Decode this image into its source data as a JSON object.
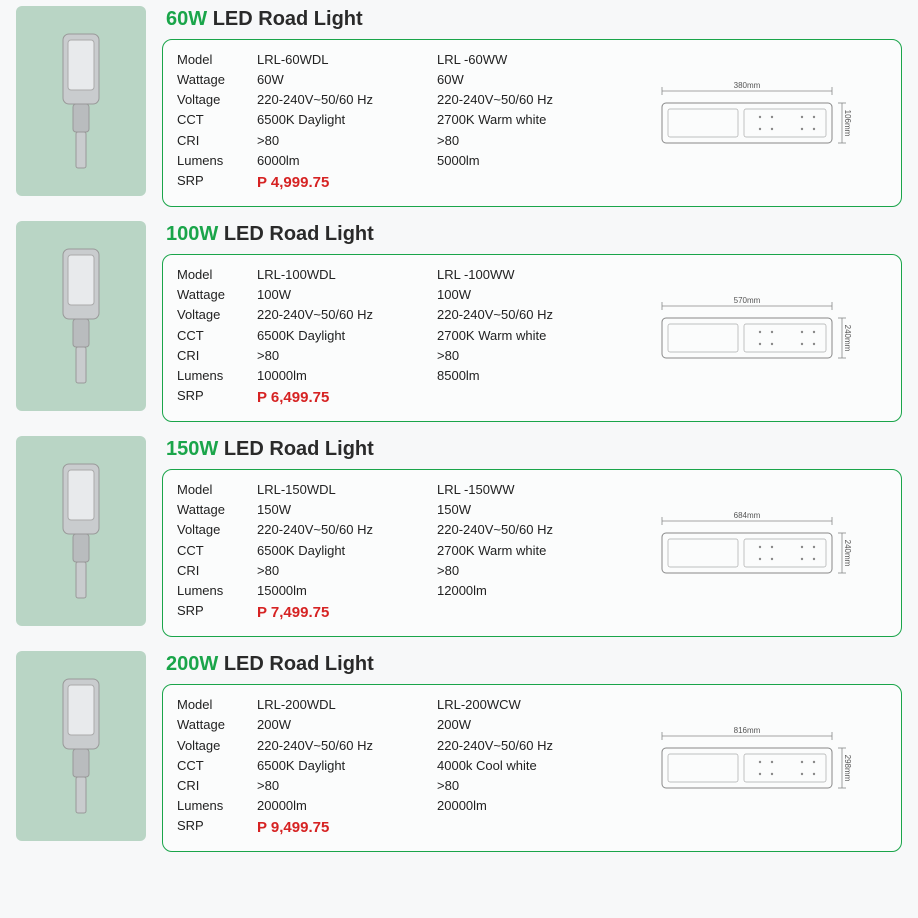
{
  "colors": {
    "accent_green": "#1aa54a",
    "price_red": "#d62323",
    "thumb_bg": "#b9d5c5",
    "box_border": "#1aa54a",
    "page_bg": "#f7f8f9",
    "diagram_stroke": "#888888"
  },
  "spec_labels": [
    "Model",
    "Wattage",
    "Voltage",
    "CCT",
    "CRI",
    "Lumens",
    "SRP"
  ],
  "products": [
    {
      "watt": "60W",
      "title_rest": "LED Road Light",
      "colA": {
        "model": "LRL-60WDL",
        "wattage": "60W",
        "voltage": "220-240V~50/60 Hz",
        "cct": "6500K Daylight",
        "cri": ">80",
        "lumens": "6000lm",
        "srp": "P 4,999.75"
      },
      "colB": {
        "model": "LRL -60WW",
        "wattage": "60W",
        "voltage": "220-240V~50/60 Hz",
        "cct": "2700K Warm white",
        "cri": ">80",
        "lumens": "5000lm"
      },
      "dim": {
        "width": "380mm",
        "height": "106mm"
      }
    },
    {
      "watt": "100W",
      "title_rest": "LED Road Light",
      "colA": {
        "model": "LRL-100WDL",
        "wattage": "100W",
        "voltage": "220-240V~50/60 Hz",
        "cct": "6500K Daylight",
        "cri": ">80",
        "lumens": "10000lm",
        "srp": "P 6,499.75"
      },
      "colB": {
        "model": "LRL -100WW",
        "wattage": "100W",
        "voltage": "220-240V~50/60 Hz",
        "cct": "2700K Warm white",
        "cri": ">80",
        "lumens": "8500lm"
      },
      "dim": {
        "width": "570mm",
        "height": "240mm"
      }
    },
    {
      "watt": "150W",
      "title_rest": "LED Road Light",
      "colA": {
        "model": "LRL-150WDL",
        "wattage": "150W",
        "voltage": "220-240V~50/60 Hz",
        "cct": "6500K Daylight",
        "cri": ">80",
        "lumens": "15000lm",
        "srp": "P 7,499.75"
      },
      "colB": {
        "model": "LRL -150WW",
        "wattage": "150W",
        "voltage": "220-240V~50/60 Hz",
        "cct": "2700K Warm white",
        "cri": ">80",
        "lumens": "12000lm"
      },
      "dim": {
        "width": "684mm",
        "height": "240mm"
      }
    },
    {
      "watt": "200W",
      "title_rest": "LED Road Light",
      "colA": {
        "model": "LRL-200WDL",
        "wattage": "200W",
        "voltage": "220-240V~50/60 Hz",
        "cct": "6500K Daylight",
        "cri": ">80",
        "lumens": "20000lm",
        "srp": "P 9,499.75"
      },
      "colB": {
        "model": "LRL-200WCW",
        "wattage": "200W",
        "voltage": "220-240V~50/60 Hz",
        "cct": "4000k Cool white",
        "cri": ">80",
        "lumens": "20000lm"
      },
      "dim": {
        "width": "816mm",
        "height": "298mm"
      }
    }
  ]
}
